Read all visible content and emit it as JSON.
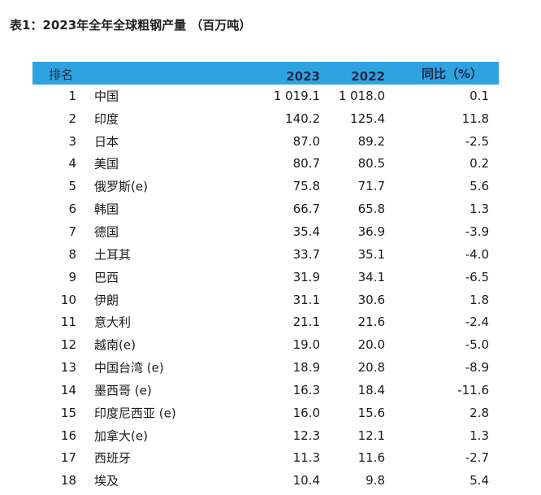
{
  "title": "表1：2023年全年全球粗钢产量 （百万吨）",
  "header": {
    "rank": "排名",
    "y2023": "2023",
    "y2022": "2022",
    "yoy": "同比（%）"
  },
  "rows": [
    {
      "rank": "1",
      "country": "中国",
      "v2023": "1 019.1",
      "v2022": "1 018.0",
      "yoy": "0.1"
    },
    {
      "rank": "2",
      "country": "印度",
      "v2023": "140.2",
      "v2022": "125.4",
      "yoy": "11.8"
    },
    {
      "rank": "3",
      "country": "日本",
      "v2023": "87.0",
      "v2022": "89.2",
      "yoy": "-2.5"
    },
    {
      "rank": "4",
      "country": "美国",
      "v2023": "80.7",
      "v2022": "80.5",
      "yoy": "0.2"
    },
    {
      "rank": "5",
      "country": "俄罗斯(e)",
      "v2023": "75.8",
      "v2022": "71.7",
      "yoy": "5.6"
    },
    {
      "rank": "6",
      "country": "韩国",
      "v2023": "66.7",
      "v2022": "65.8",
      "yoy": "1.3"
    },
    {
      "rank": "7",
      "country": "德国",
      "v2023": "35.4",
      "v2022": "36.9",
      "yoy": "-3.9"
    },
    {
      "rank": "8",
      "country": "土耳其",
      "v2023": "33.7",
      "v2022": "35.1",
      "yoy": "-4.0"
    },
    {
      "rank": "9",
      "country": "巴西",
      "v2023": "31.9",
      "v2022": "34.1",
      "yoy": "-6.5"
    },
    {
      "rank": "10",
      "country": "伊朗",
      "v2023": "31.1",
      "v2022": "30.6",
      "yoy": "1.8"
    },
    {
      "rank": "11",
      "country": "意大利",
      "v2023": "21.1",
      "v2022": "21.6",
      "yoy": "-2.4"
    },
    {
      "rank": "12",
      "country": "越南(e)",
      "v2023": "19.0",
      "v2022": "20.0",
      "yoy": "-5.0"
    },
    {
      "rank": "13",
      "country": "中国台湾 (e)",
      "v2023": "18.9",
      "v2022": "20.8",
      "yoy": "-8.9"
    },
    {
      "rank": "14",
      "country": "墨西哥 (e)",
      "v2023": "16.3",
      "v2022": "18.4",
      "yoy": "-11.6"
    },
    {
      "rank": "15",
      "country": "印度尼西亚 (e)",
      "v2023": "16.0",
      "v2022": "15.6",
      "yoy": "2.8"
    },
    {
      "rank": "16",
      "country": "加拿大(e)",
      "v2023": "12.3",
      "v2022": "12.1",
      "yoy": "1.3"
    },
    {
      "rank": "17",
      "country": "西班牙",
      "v2023": "11.3",
      "v2022": "11.6",
      "yoy": "-2.7"
    },
    {
      "rank": "18",
      "country": "埃及",
      "v2023": "10.4",
      "v2022": "9.8",
      "yoy": "5.4"
    }
  ]
}
